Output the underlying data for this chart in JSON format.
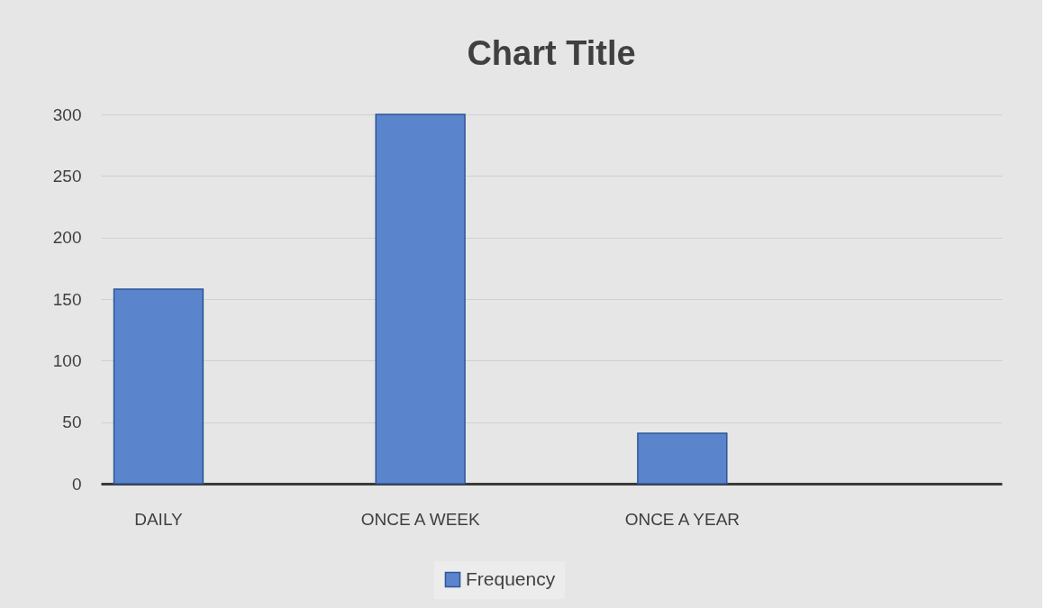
{
  "chart_data": {
    "type": "bar",
    "title": "Chart Title",
    "categories": [
      "DAILY",
      "ONCE A WEEK",
      "ONCE A YEAR",
      null
    ],
    "series": [
      {
        "name": "Frequency",
        "color": "#5a84cc",
        "values": [
          158,
          300,
          41,
          null
        ]
      }
    ],
    "ylim": [
      0,
      300
    ],
    "yticks": [
      0,
      50,
      100,
      150,
      200,
      250,
      300
    ],
    "grid": "y",
    "legend": "bottom"
  }
}
